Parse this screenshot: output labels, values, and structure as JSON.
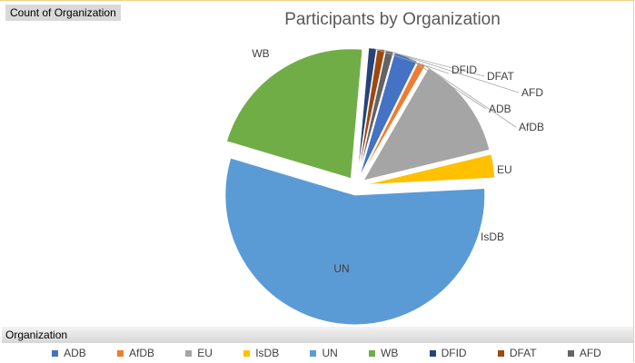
{
  "pivot": {
    "value_field": "Count of Organization",
    "axis_field": "Organization"
  },
  "chart_data": {
    "type": "pie",
    "title": "Participants by Organization",
    "legend_position": "bottom",
    "exploded": true,
    "slices": [
      {
        "name": "ADB",
        "value": 3,
        "color": "#4472C4"
      },
      {
        "name": "AfDB",
        "value": 1,
        "color": "#ED7D31"
      },
      {
        "name": "EU",
        "value": 13,
        "color": "#A5A5A5"
      },
      {
        "name": "IsDB",
        "value": 3,
        "color": "#FFC000"
      },
      {
        "name": "UN",
        "value": 56,
        "color": "#5B9BD5"
      },
      {
        "name": "WB",
        "value": 22,
        "color": "#70AD47"
      },
      {
        "name": "DFID",
        "value": 1,
        "color": "#264478"
      },
      {
        "name": "DFAT",
        "value": 1,
        "color": "#9E480E"
      },
      {
        "name": "AFD",
        "value": 1,
        "color": "#636363"
      }
    ]
  }
}
